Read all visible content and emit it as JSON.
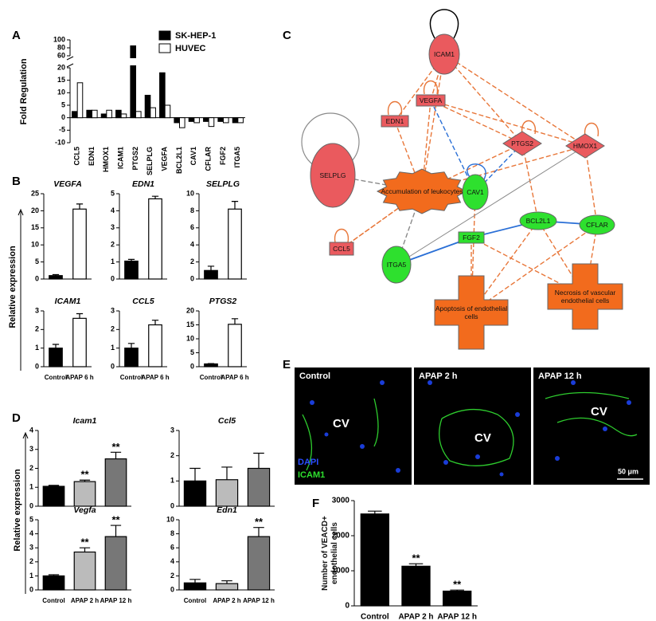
{
  "chart_data": [
    {
      "type": "bar",
      "panel": "A",
      "ylabel": "Fold Regulation",
      "categories": [
        "CCL5",
        "EDN1",
        "HMOX1",
        "ICAM1",
        "PTGS2",
        "SELPLG",
        "VEGFA",
        "BCL2L1",
        "CAV1",
        "CFLAR",
        "FGF2",
        "ITGA5"
      ],
      "series": [
        {
          "name": "SK-HEP-1",
          "color": "#000000",
          "values": [
            2.5,
            3,
            1.5,
            3,
            85,
            9,
            18,
            -2,
            -1.5,
            -1.5,
            -1.5,
            -2
          ]
        },
        {
          "name": "HUVEC",
          "color": "#ffffff",
          "values": [
            14,
            3,
            3,
            1.5,
            2.5,
            4,
            5,
            -4,
            -2,
            -3.5,
            -2,
            -2
          ]
        }
      ],
      "ylim": [
        -10,
        100
      ],
      "axis_break": [
        20,
        60
      ],
      "yticks": [
        -10,
        -5,
        0,
        5,
        10,
        15,
        20,
        60,
        80,
        100
      ]
    },
    {
      "type": "bar",
      "panel": "B",
      "ylabel": "Relative expression",
      "title": "VEGFA",
      "categories": [
        null,
        null
      ],
      "values": [
        1,
        20.5
      ],
      "errors": [
        0.3,
        1.5
      ],
      "colors": [
        "#000000",
        "#ffffff"
      ],
      "ylim": [
        0,
        25
      ],
      "yticks": [
        0,
        5,
        10,
        15,
        20,
        25
      ]
    },
    {
      "type": "bar",
      "title": "EDN1",
      "categories": [
        null,
        null
      ],
      "values": [
        1.05,
        4.7
      ],
      "errors": [
        0.1,
        0.15
      ],
      "colors": [
        "#000000",
        "#ffffff"
      ],
      "ylim": [
        0,
        5
      ],
      "yticks": [
        0,
        1,
        2,
        3,
        4,
        5
      ]
    },
    {
      "type": "bar",
      "title": "SELPLG",
      "categories": [
        null,
        null
      ],
      "values": [
        1,
        8.2
      ],
      "errors": [
        0.5,
        0.9
      ],
      "colors": [
        "#000000",
        "#ffffff"
      ],
      "ylim": [
        0,
        10
      ],
      "yticks": [
        0,
        2,
        4,
        6,
        8,
        10
      ]
    },
    {
      "type": "bar",
      "title": "ICAM1",
      "categories": [
        "Control",
        "APAP 6 h"
      ],
      "values": [
        1,
        2.6
      ],
      "errors": [
        0.2,
        0.25
      ],
      "colors": [
        "#000000",
        "#ffffff"
      ],
      "ylim": [
        0,
        3
      ],
      "yticks": [
        0,
        1,
        2,
        3
      ]
    },
    {
      "type": "bar",
      "title": "CCL5",
      "categories": [
        "Control",
        "APAP 6 h"
      ],
      "values": [
        1,
        2.25
      ],
      "errors": [
        0.25,
        0.25
      ],
      "colors": [
        "#000000",
        "#ffffff"
      ],
      "ylim": [
        0,
        3
      ],
      "yticks": [
        0,
        1,
        2,
        3
      ]
    },
    {
      "type": "bar",
      "title": "PTGS2",
      "categories": [
        "Control",
        "APAP 6 h"
      ],
      "values": [
        1,
        15.2
      ],
      "errors": [
        0.1,
        2
      ],
      "colors": [
        "#000000",
        "#ffffff"
      ],
      "ylim": [
        0,
        20
      ],
      "yticks": [
        0,
        5,
        10,
        15,
        20
      ]
    },
    {
      "type": "bar",
      "panel": "D",
      "ylabel": "Relative expression",
      "title": "Icam1",
      "categories": [
        null,
        null,
        null
      ],
      "values": [
        1.05,
        1.3,
        2.5
      ],
      "errors": [
        0.05,
        0.08,
        0.35
      ],
      "significance": [
        null,
        "**",
        "**"
      ],
      "colors": [
        "#000000",
        "#bbbbbb",
        "#777777"
      ],
      "ylim": [
        0,
        4
      ],
      "yticks": [
        0,
        1,
        2,
        3,
        4
      ]
    },
    {
      "type": "bar",
      "title": "Ccl5",
      "categories": [
        null,
        null,
        null
      ],
      "values": [
        1,
        1.05,
        1.5
      ],
      "errors": [
        0.5,
        0.5,
        0.6
      ],
      "colors": [
        "#000000",
        "#bbbbbb",
        "#777777"
      ],
      "ylim": [
        0,
        3
      ],
      "yticks": [
        0,
        1,
        2,
        3
      ]
    },
    {
      "type": "bar",
      "title": "Vegfa",
      "categories": [
        "Control",
        "APAP 2 h",
        "APAP 12 h"
      ],
      "values": [
        1,
        2.7,
        3.8
      ],
      "errors": [
        0.08,
        0.3,
        0.8
      ],
      "significance": [
        null,
        "**",
        "**"
      ],
      "colors": [
        "#000000",
        "#bbbbbb",
        "#777777"
      ],
      "ylim": [
        0,
        5
      ],
      "yticks": [
        0,
        1,
        2,
        3,
        4,
        5
      ]
    },
    {
      "type": "bar",
      "title": "Edn1",
      "categories": [
        "Control",
        "APAP 2 h",
        "APAP 12 h"
      ],
      "values": [
        1,
        0.9,
        7.6
      ],
      "errors": [
        0.5,
        0.4,
        1.3
      ],
      "significance": [
        null,
        null,
        "**"
      ],
      "colors": [
        "#000000",
        "#bbbbbb",
        "#777777"
      ],
      "ylim": [
        0,
        10
      ],
      "yticks": [
        0,
        2,
        4,
        6,
        8,
        10
      ]
    },
    {
      "type": "bar",
      "panel": "F",
      "ylabel": "Number of VEACD+ endothelial cells",
      "categories": [
        "Control",
        "APAP 2 h",
        "APAP 12 h"
      ],
      "values": [
        2620,
        1130,
        420
      ],
      "errors": [
        80,
        70,
        30
      ],
      "significance": [
        null,
        "**",
        "**"
      ],
      "colors": [
        "#000000",
        "#000000",
        "#000000"
      ],
      "ylim": [
        0,
        3000
      ],
      "yticks": [
        0,
        1000,
        2000,
        3000
      ]
    }
  ],
  "network": {
    "panel": "C",
    "nodes": [
      {
        "label": "ICAM1"
      },
      {
        "label": "VEGFA"
      },
      {
        "label": "EDN1"
      },
      {
        "label": "PTGS2"
      },
      {
        "label": "HMOX1"
      },
      {
        "label": "SELPLG"
      },
      {
        "label": "Accumulation of leukocytes"
      },
      {
        "label": "CAV1"
      },
      {
        "label": "BCL2L1"
      },
      {
        "label": "CFLAR"
      },
      {
        "label": "CCL5"
      },
      {
        "label": "ITGA5"
      },
      {
        "label": "FGF2"
      },
      {
        "label": "Apoptosis of endothelial cells"
      },
      {
        "label": "Necrosis of vascular endothelial cells"
      }
    ]
  },
  "micrographs": {
    "panel": "E",
    "images": [
      {
        "title": "Control",
        "annotation": "CV"
      },
      {
        "title": "APAP 2 h",
        "annotation": "CV"
      },
      {
        "title": "APAP 12 h",
        "annotation": "CV"
      }
    ],
    "stains": [
      "DAPI",
      "ICAM1"
    ],
    "scale_bar": "50 μm"
  }
}
